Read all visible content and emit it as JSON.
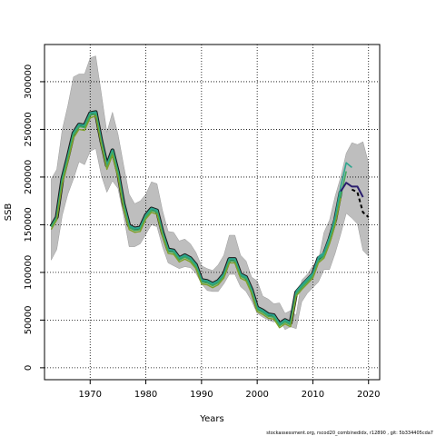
{
  "chart_data": {
    "type": "line",
    "xlabel": "Years",
    "ylabel": "SSB",
    "xlim": [
      1961.8,
      2022.0
    ],
    "ylim": [
      -12500,
      339000
    ],
    "xticks": [
      1970,
      1980,
      1990,
      2000,
      2010,
      2020
    ],
    "yticks": [
      0,
      50000,
      100000,
      150000,
      200000,
      250000,
      300000
    ],
    "grid": true,
    "footer": "stockassessment.org, rscod20_combinedidx, r12890 , git: 5b334405cda7",
    "colors": {
      "ci_band": "#bebebe",
      "thick_base": "#1a1a1a",
      "retro_green": "#41ab5d",
      "retro_teal": "#2ca58d",
      "retro_olive": "#7fa02a",
      "retro_dark": "#2b1f6e",
      "retro_black": "#000000"
    },
    "ci_band": {
      "x": [
        1963,
        1964,
        1965,
        1966,
        1967,
        1968,
        1969,
        1970,
        1971,
        1972,
        1973,
        1974,
        1975,
        1976,
        1977,
        1978,
        1979,
        1980,
        1981,
        1982,
        1983,
        1984,
        1985,
        1986,
        1987,
        1988,
        1989,
        1990,
        1991,
        1992,
        1993,
        1994,
        1995,
        1996,
        1997,
        1998,
        1999,
        2000,
        2001,
        2002,
        2003,
        2004,
        2005,
        2006,
        2007,
        2008,
        2009,
        2010,
        2011,
        2012,
        2013,
        2014,
        2015,
        2016,
        2017,
        2018,
        2019,
        2020
      ],
      "upper": [
        198000,
        208000,
        250000,
        275000,
        305000,
        308000,
        308000,
        325000,
        327000,
        288000,
        247000,
        268000,
        245000,
        213000,
        182000,
        172000,
        175000,
        182000,
        195000,
        193000,
        165000,
        143000,
        142000,
        133000,
        135000,
        130000,
        121000,
        107000,
        104000,
        102000,
        108000,
        118000,
        139000,
        139000,
        118000,
        112000,
        95000,
        91000,
        75000,
        72000,
        67000,
        68000,
        57000,
        60000,
        55000,
        92000,
        98000,
        107000,
        113000,
        142000,
        155000,
        180000,
        200000,
        225000,
        236000,
        234000,
        237000,
        215000
      ],
      "lower": [
        113000,
        124000,
        160000,
        182000,
        198000,
        216000,
        213000,
        227000,
        230000,
        202000,
        184000,
        196000,
        188000,
        160000,
        127000,
        127000,
        130000,
        140000,
        150000,
        148000,
        127000,
        110000,
        107000,
        104000,
        106000,
        105000,
        99000,
        88000,
        81000,
        80000,
        80000,
        88000,
        98000,
        98000,
        85000,
        80000,
        70000,
        57000,
        53000,
        50000,
        48000,
        51000,
        40000,
        43000,
        41000,
        69000,
        78000,
        84000,
        90000,
        103000,
        103000,
        120000,
        140000,
        162000,
        157000,
        151000,
        123000,
        117000
      ]
    },
    "series": [
      {
        "name": "",
        "role": "base",
        "x": [
          1963,
          1964,
          1965,
          1966,
          1967,
          1968,
          1969,
          1970,
          1971,
          1972,
          1973,
          1974,
          1975,
          1976,
          1977,
          1978,
          1979,
          1980,
          1981,
          1982,
          1983,
          1984,
          1985,
          1986,
          1987,
          1988,
          1989,
          1990,
          1991,
          1992,
          1993,
          1994,
          1995,
          1996,
          1997,
          1998,
          1999,
          2000,
          2001,
          2002,
          2003,
          2004,
          2005,
          2006,
          2007,
          2008,
          2009,
          2010,
          2011,
          2012,
          2013,
          2014,
          2015
        ],
        "values": [
          148000,
          158000,
          198000,
          221000,
          246000,
          255000,
          254000,
          267000,
          268000,
          238000,
          212000,
          228000,
          205000,
          172000,
          149000,
          146000,
          147000,
          160000,
          167000,
          165000,
          142000,
          124000,
          123000,
          115000,
          118000,
          115000,
          108000,
          92000,
          91000,
          88000,
          91000,
          98000,
          114000,
          114000,
          98000,
          95000,
          82000,
          63000,
          60000,
          56000,
          55000,
          46000,
          50000,
          47000,
          79000,
          86000,
          92000,
          98000,
          115000,
          119000,
          135000,
          155000,
          185000
        ]
      },
      {
        "name": "",
        "role": "retro-green",
        "x": [
          1963,
          1964,
          1965,
          1966,
          1967,
          1968,
          1969,
          1970,
          1971,
          1972,
          1973,
          1974,
          1975,
          1976,
          1977,
          1978,
          1979,
          1980,
          1981,
          1982,
          1983,
          1984,
          1985,
          1986,
          1987,
          1988,
          1989,
          1990,
          1991,
          1992,
          1993,
          1994,
          1995,
          1996,
          1997,
          1998,
          1999,
          2000,
          2001,
          2002,
          2003,
          2004,
          2005,
          2006,
          2007,
          2008,
          2009,
          2010,
          2011,
          2012,
          2013,
          2014,
          2015,
          2016
        ],
        "values": [
          148000,
          157000,
          196000,
          219000,
          244000,
          253000,
          252000,
          265000,
          266000,
          236000,
          210000,
          226000,
          203000,
          170000,
          147000,
          144000,
          145000,
          158000,
          165000,
          163000,
          140000,
          122000,
          121000,
          113000,
          116000,
          113000,
          106000,
          90000,
          89000,
          86000,
          89000,
          96000,
          112000,
          112000,
          96000,
          93000,
          80000,
          61000,
          58000,
          54000,
          53000,
          44000,
          48000,
          45000,
          77000,
          84000,
          90000,
          96000,
          112000,
          117000,
          132000,
          153000,
          180000,
          206000
        ]
      },
      {
        "name": "",
        "role": "retro-teal",
        "x": [
          2007,
          2008,
          2009,
          2010,
          2011,
          2012,
          2013,
          2014,
          2015,
          2016,
          2017
        ],
        "values": [
          80000,
          87000,
          93000,
          99000,
          116000,
          121000,
          137000,
          158000,
          190000,
          215000,
          210000
        ]
      },
      {
        "name": "",
        "role": "retro-olive",
        "x": [
          1963,
          1964,
          1965,
          1966,
          1967,
          1968,
          1969,
          1970,
          1971,
          1972,
          1973,
          1974,
          1975,
          1976,
          1977,
          1978,
          1979,
          1980,
          1981,
          1982,
          1983,
          1984,
          1985,
          1986,
          1987,
          1988,
          1989,
          1990,
          1991,
          1992,
          1993,
          1994,
          1995,
          1996,
          1997,
          1998,
          1999,
          2000,
          2001,
          2002,
          2003,
          2004,
          2005,
          2006,
          2007,
          2008,
          2009,
          2010,
          2011,
          2012,
          2013,
          2014,
          2015
        ],
        "values": [
          145000,
          155000,
          193000,
          216000,
          241000,
          250000,
          249000,
          262000,
          264000,
          234000,
          208000,
          223000,
          200000,
          167000,
          145000,
          142000,
          143000,
          156000,
          163000,
          161000,
          138000,
          120000,
          119000,
          111000,
          114000,
          111000,
          104000,
          88000,
          87000,
          84000,
          87000,
          94000,
          110000,
          110000,
          94000,
          91000,
          78000,
          59000,
          56000,
          52000,
          51000,
          42000,
          46000,
          43000,
          75000,
          82000,
          88000,
          94000,
          110000,
          115000,
          130000,
          150000,
          178000
        ]
      },
      {
        "name": "",
        "role": "retro-dark",
        "x": [
          2015,
          2016,
          2017,
          2018,
          2019
        ],
        "values": [
          185000,
          194000,
          190000,
          190000,
          179000
        ]
      },
      {
        "name": "",
        "role": "retro-black-dashed",
        "x": [
          2017,
          2018,
          2019,
          2020
        ],
        "values": [
          187000,
          184000,
          163000,
          158000
        ]
      }
    ]
  }
}
